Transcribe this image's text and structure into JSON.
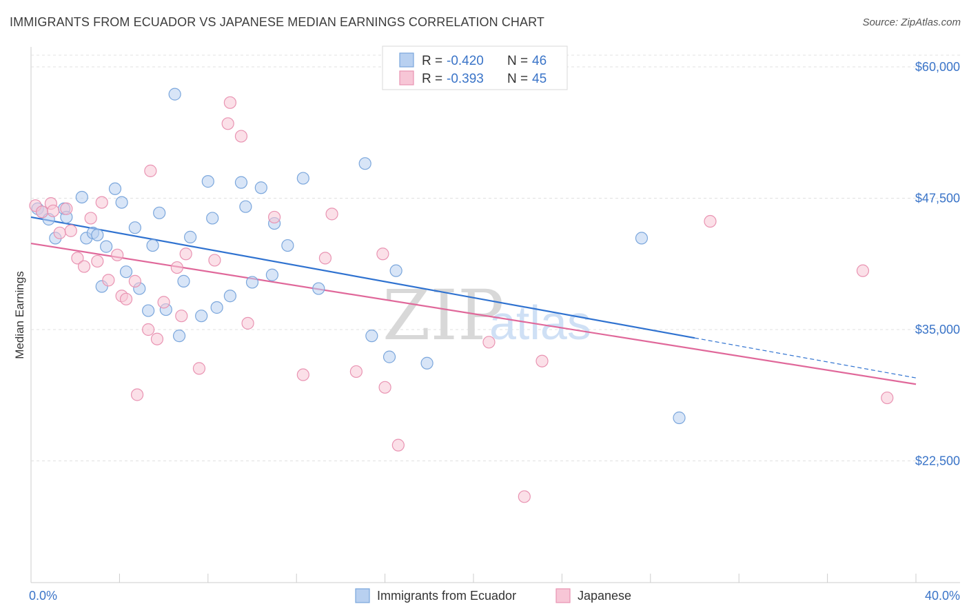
{
  "title": "IMMIGRANTS FROM ECUADOR VS JAPANESE MEDIAN EARNINGS CORRELATION CHART",
  "source": "Source: ZipAtlas.com",
  "watermark": {
    "zip": "ZIP",
    "atlas": "atlas"
  },
  "legend": {
    "rows": [
      {
        "r_label": "R = ",
        "r_value": "-0.420",
        "n_label": "N = ",
        "n_value": "46"
      },
      {
        "r_label": "R = ",
        "r_value": "-0.393",
        "n_label": "N = ",
        "n_value": "45"
      }
    ]
  },
  "bottom_legend": [
    "Immigrants from Ecuador",
    "Japanese"
  ],
  "colors": {
    "blue_fill": "#b8d0f0",
    "blue_stroke": "#7aa6dc",
    "blue_line": "#2f72d0",
    "pink_fill": "#f7c6d6",
    "pink_stroke": "#e993b2",
    "pink_line": "#e0689a",
    "grid": "#e0e0e0",
    "tick": "#3a74c8"
  },
  "chart_data": {
    "type": "scatter",
    "title": "IMMIGRANTS FROM ECUADOR VS JAPANESE MEDIAN EARNINGS CORRELATION CHART",
    "xlabel": "",
    "ylabel": "Median Earnings",
    "xlim": [
      0,
      40
    ],
    "ylim": [
      12000,
      62000
    ],
    "x_ticks": [
      "0.0%",
      "40.0%"
    ],
    "y_ticks": [
      {
        "value": 22500,
        "label": "$22,500"
      },
      {
        "value": 35000,
        "label": "$35,000"
      },
      {
        "value": 47500,
        "label": "$47,500"
      },
      {
        "value": 60000,
        "label": "$60,000"
      }
    ],
    "grid": true,
    "legend_position": "top-center",
    "series": [
      {
        "name": "Immigrants from Ecuador",
        "R": -0.42,
        "N": 46,
        "trend": {
          "x0": 0,
          "y0": 45700,
          "x1": 30,
          "y1": 34200,
          "dash_to_x": 40,
          "dash_to_y": 30400
        },
        "points": [
          [
            0.3,
            46500
          ],
          [
            0.5,
            46200
          ],
          [
            0.8,
            45500
          ],
          [
            1.1,
            43700
          ],
          [
            1.5,
            46500
          ],
          [
            1.6,
            45700
          ],
          [
            2.3,
            47600
          ],
          [
            2.5,
            43700
          ],
          [
            2.8,
            44200
          ],
          [
            3.2,
            39100
          ],
          [
            3.4,
            42900
          ],
          [
            3.8,
            48400
          ],
          [
            4.1,
            47100
          ],
          [
            4.3,
            40500
          ],
          [
            4.7,
            44700
          ],
          [
            4.9,
            38900
          ],
          [
            5.3,
            36800
          ],
          [
            5.5,
            43000
          ],
          [
            5.8,
            46100
          ],
          [
            6.1,
            36900
          ],
          [
            6.7,
            34400
          ],
          [
            6.9,
            39600
          ],
          [
            7.2,
            43800
          ],
          [
            7.7,
            36300
          ],
          [
            8.0,
            49100
          ],
          [
            8.2,
            45600
          ],
          [
            8.4,
            37100
          ],
          [
            9.0,
            38200
          ],
          [
            9.5,
            49000
          ],
          [
            9.7,
            46700
          ],
          [
            10.0,
            39500
          ],
          [
            10.4,
            48500
          ],
          [
            10.9,
            40200
          ],
          [
            11.0,
            45100
          ],
          [
            11.6,
            43000
          ],
          [
            12.3,
            49400
          ],
          [
            13.0,
            38900
          ],
          [
            15.1,
            50800
          ],
          [
            15.4,
            34400
          ],
          [
            16.2,
            32400
          ],
          [
            16.5,
            40600
          ],
          [
            17.9,
            31800
          ],
          [
            6.5,
            57400
          ],
          [
            27.6,
            43700
          ],
          [
            29.3,
            26600
          ],
          [
            3.0,
            44000
          ]
        ]
      },
      {
        "name": "Japanese",
        "R": -0.393,
        "N": 45,
        "trend": {
          "x0": 0,
          "y0": 43200,
          "x1": 40,
          "y1": 29800
        },
        "points": [
          [
            0.2,
            46800
          ],
          [
            0.5,
            46200
          ],
          [
            0.9,
            47000
          ],
          [
            1.3,
            44200
          ],
          [
            1.6,
            46500
          ],
          [
            1.8,
            44400
          ],
          [
            2.1,
            41800
          ],
          [
            2.4,
            41000
          ],
          [
            2.7,
            45600
          ],
          [
            3.0,
            41500
          ],
          [
            3.2,
            47100
          ],
          [
            3.5,
            39700
          ],
          [
            3.9,
            42100
          ],
          [
            4.1,
            38200
          ],
          [
            4.3,
            37900
          ],
          [
            4.7,
            39600
          ],
          [
            4.8,
            28800
          ],
          [
            5.3,
            35000
          ],
          [
            5.4,
            50100
          ],
          [
            5.7,
            34100
          ],
          [
            6.0,
            37600
          ],
          [
            6.6,
            40900
          ],
          [
            6.8,
            36300
          ],
          [
            7.0,
            42200
          ],
          [
            7.6,
            31300
          ],
          [
            8.3,
            41600
          ],
          [
            8.9,
            54600
          ],
          [
            9.0,
            56600
          ],
          [
            9.5,
            53400
          ],
          [
            9.8,
            35600
          ],
          [
            11.0,
            45700
          ],
          [
            12.3,
            30700
          ],
          [
            13.3,
            41800
          ],
          [
            13.6,
            46000
          ],
          [
            14.7,
            31000
          ],
          [
            15.9,
            42200
          ],
          [
            16.0,
            29500
          ],
          [
            16.6,
            24000
          ],
          [
            20.7,
            33800
          ],
          [
            22.3,
            19100
          ],
          [
            23.1,
            32000
          ],
          [
            30.7,
            45300
          ],
          [
            37.6,
            40600
          ],
          [
            38.7,
            28500
          ],
          [
            1.0,
            46300
          ]
        ]
      }
    ]
  }
}
